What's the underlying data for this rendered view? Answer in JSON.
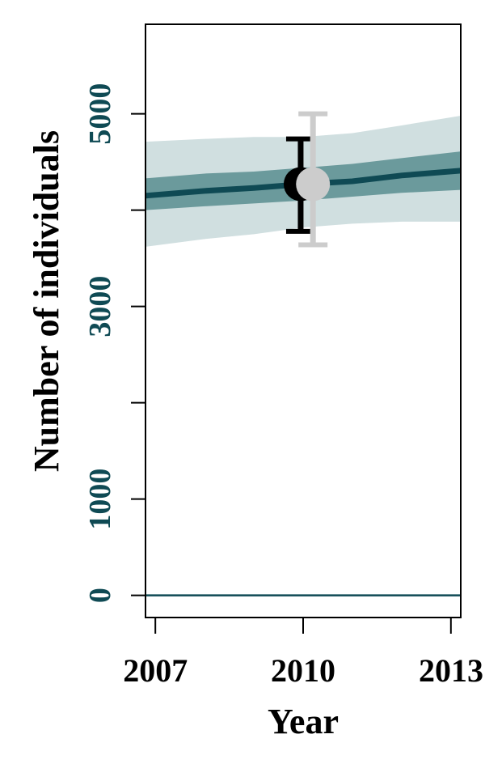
{
  "chart_data": {
    "type": "line",
    "title": "",
    "xlabel": "Year",
    "ylabel": "Number of individuals",
    "x_ticks": [
      "2007",
      "2010",
      "2013"
    ],
    "y_ticks": [
      "0",
      "1000",
      "3000",
      "5000"
    ],
    "xlim": [
      2006.8,
      2013.2
    ],
    "ylim": [
      -230,
      5930
    ],
    "trend": {
      "x": [
        2006.8,
        2008,
        2009,
        2010,
        2011,
        2012,
        2013.2
      ],
      "mean": [
        4150,
        4200,
        4230,
        4270,
        4300,
        4360,
        4410
      ],
      "inner_lo": [
        4000,
        4040,
        4070,
        4100,
        4140,
        4180,
        4210
      ],
      "inner_hi": [
        4330,
        4380,
        4400,
        4440,
        4480,
        4540,
        4610
      ],
      "outer_lo": [
        3620,
        3700,
        3750,
        3820,
        3860,
        3880,
        3880
      ],
      "outer_hi": [
        4710,
        4740,
        4760,
        4760,
        4800,
        4880,
        4980
      ]
    },
    "estimates": [
      {
        "x": 2009.95,
        "y": 4270,
        "lo": 3780,
        "hi": 4740,
        "color": "#000000"
      },
      {
        "x": 2010.2,
        "y": 4270,
        "lo": 3640,
        "hi": 5000,
        "color": "#cccccc"
      }
    ],
    "zero_line": 0,
    "colors": {
      "axis_text": "#0f4a54",
      "trend_line": "#0f4a54",
      "inner_band": "#6b9a9c",
      "outer_band": "#d0dfe0",
      "frame": "#000000"
    }
  }
}
